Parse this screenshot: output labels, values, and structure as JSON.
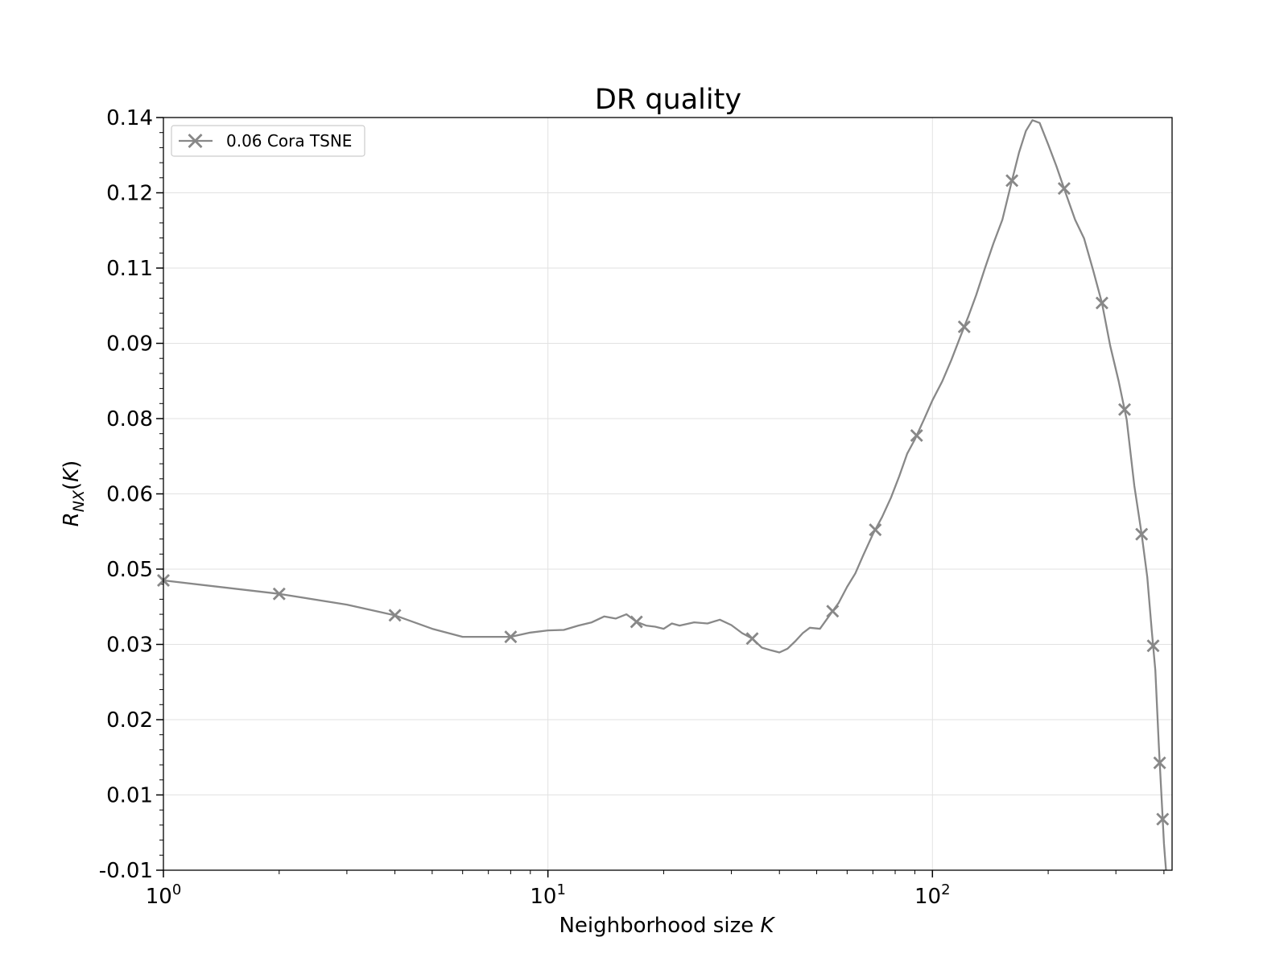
{
  "chart_data": {
    "type": "line",
    "title": "DR quality",
    "xlabel": "Neighborhood size K",
    "ylabel": "R_NX(K)",
    "xscale": "log",
    "xlim": [
      1,
      420
    ],
    "ylim": [
      0,
      0.14
    ],
    "grid": true,
    "legend_placement": "top-left",
    "x_tick_labels": [
      "10^0",
      "10^1",
      "10^2"
    ],
    "y_tick_labels": [
      "-0.01",
      "0.01",
      "0.02",
      "0.03",
      "0.05",
      "0.06",
      "0.08",
      "0.09",
      "0.11",
      "0.12",
      "0.14"
    ],
    "series": [
      {
        "name": "0.06 Cora TSNE",
        "color": "#888888",
        "marker": "X",
        "x": [
          1,
          2,
          3,
          4,
          5,
          6,
          7,
          8,
          9,
          10,
          11,
          12,
          13,
          14,
          15,
          16,
          17,
          18,
          19,
          20,
          21,
          22,
          24,
          26,
          28,
          30,
          32,
          34,
          36,
          38,
          40,
          42,
          44,
          46,
          48,
          51,
          54,
          57,
          60,
          63,
          66,
          70,
          74,
          78,
          82,
          86,
          90,
          95,
          100,
          106,
          112,
          118,
          124,
          130,
          137,
          144,
          152,
          160,
          168,
          175,
          182,
          190,
          200,
          210,
          222,
          235,
          248,
          262,
          276,
          290,
          305,
          320,
          335,
          350,
          362,
          372,
          380,
          388,
          395,
          400,
          403,
          405
        ],
        "y": [
          0.0539,
          0.0514,
          0.0494,
          0.0474,
          0.0449,
          0.0434,
          0.0434,
          0.0434,
          0.0442,
          0.0446,
          0.0447,
          0.0455,
          0.0461,
          0.0472,
          0.0468,
          0.0476,
          0.0462,
          0.0455,
          0.0453,
          0.0449,
          0.0459,
          0.0455,
          0.0461,
          0.0459,
          0.0466,
          0.0456,
          0.0441,
          0.0431,
          0.0414,
          0.0409,
          0.0405,
          0.0412,
          0.0426,
          0.0441,
          0.0451,
          0.0449,
          0.0474,
          0.0497,
          0.0527,
          0.0552,
          0.0585,
          0.0625,
          0.0657,
          0.0693,
          0.0733,
          0.0775,
          0.0801,
          0.0838,
          0.0874,
          0.0909,
          0.0949,
          0.0991,
          0.103,
          0.107,
          0.112,
          0.1165,
          0.121,
          0.1275,
          0.1335,
          0.1375,
          0.1395,
          0.139,
          0.135,
          0.131,
          0.126,
          0.121,
          0.1175,
          0.1115,
          0.1055,
          0.0975,
          0.091,
          0.0838,
          0.0715,
          0.0625,
          0.0545,
          0.0445,
          0.0372,
          0.023,
          0.0125,
          0.005,
          0.002,
          0.0
        ],
        "marker_x": [
          1,
          2,
          4,
          8,
          17,
          34,
          55,
          71,
          91,
          121,
          161,
          220,
          276,
          316,
          350,
          375,
          390,
          397
        ]
      }
    ]
  }
}
